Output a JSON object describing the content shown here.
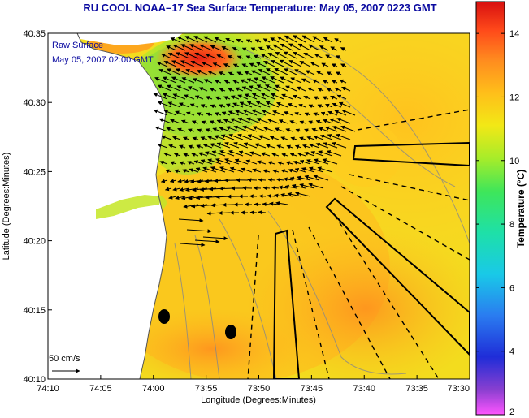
{
  "title": "RU COOL  NOAA–17  Sea Surface Temperature:  May 05, 2007 0223 GMT",
  "legend": {
    "line1": "Raw Surface",
    "line2": "May 05, 2007 02:00 GMT"
  },
  "axes": {
    "xlabel": "Longitude (Degrees:Minutes)",
    "ylabel": "Latitude (Degrees:Minutes)",
    "x_ticks": [
      "74:10",
      "74:05",
      "74:00",
      "73:55",
      "73:50",
      "73:45",
      "73:40",
      "73:35",
      "73:30"
    ],
    "y_ticks": [
      "40:35",
      "40:30",
      "40:25",
      "40:20",
      "40:15",
      "40:10"
    ]
  },
  "colorbar": {
    "title": "Temperature (°C)",
    "ticks": [
      "14",
      "12",
      "10",
      "8",
      "6",
      "4",
      "2"
    ],
    "range": [
      2,
      15
    ]
  },
  "scale": {
    "label": "50 cm/s"
  },
  "colors": {
    "land": "#ffffff",
    "title": "#0a0aa0",
    "vectors": "#000000"
  }
}
